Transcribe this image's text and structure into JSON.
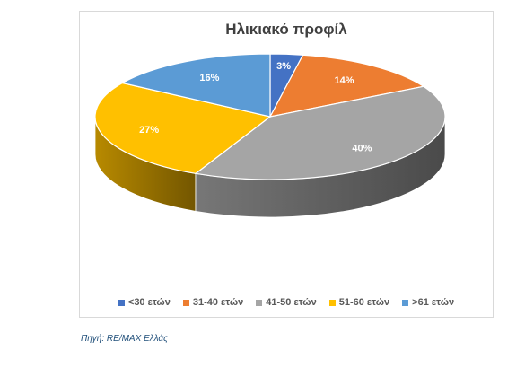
{
  "source_note": "Πηγή: RE/MAX Ελλάς",
  "chart_data": {
    "type": "pie",
    "style": "3d",
    "title": "Ηλικιακό προφίλ",
    "legend_position": "bottom",
    "slices": [
      {
        "name": "<30 ετών",
        "value": 3,
        "label": "3%",
        "color": "#4472c4"
      },
      {
        "name": "31-40 ετών",
        "value": 14,
        "label": "14%",
        "color": "#ed7d31"
      },
      {
        "name": "41-50 ετών",
        "value": 40,
        "label": "40%",
        "color": "#a5a5a5"
      },
      {
        "name": "51-60 ετών",
        "value": 27,
        "label": "27%",
        "color": "#ffc000"
      },
      {
        "name": ">61 ετών",
        "value": 16,
        "label": "16%",
        "color": "#5b9bd5"
      }
    ]
  }
}
